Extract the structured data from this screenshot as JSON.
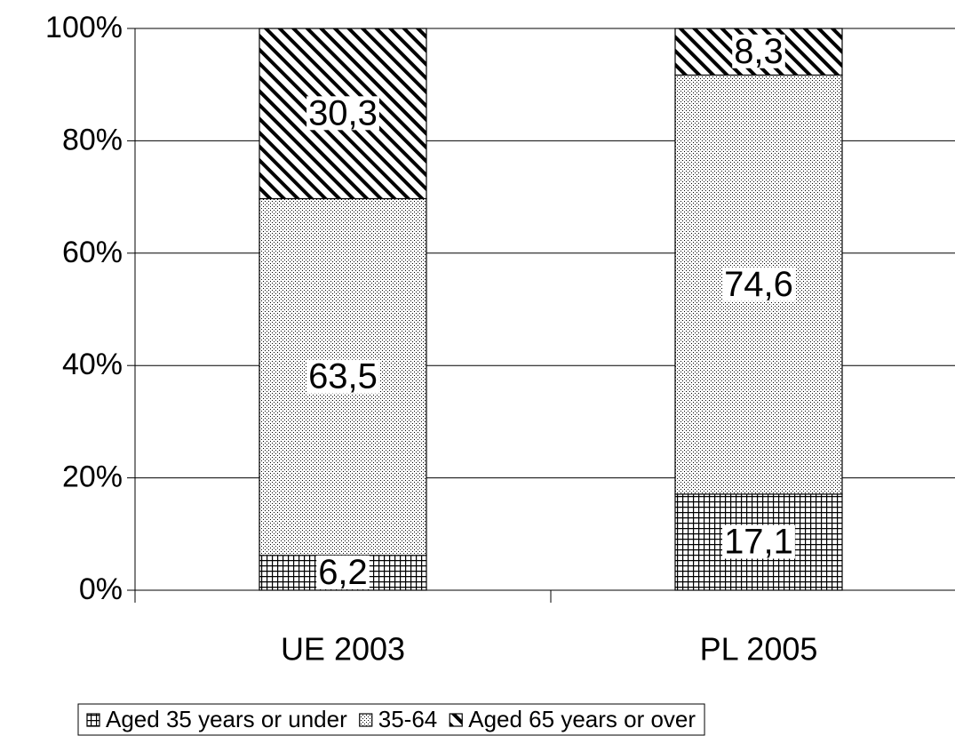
{
  "chart_data": {
    "type": "stacked-bar",
    "categories": [
      "UE 2003",
      "PL 2005"
    ],
    "series": [
      {
        "name": "Aged 35 years or under",
        "color": "#000000",
        "pattern": "grid",
        "values": [
          6.2,
          17.1
        ],
        "value_labels": [
          "6,2",
          "17,1"
        ]
      },
      {
        "name": "35-64",
        "color": "#000000",
        "pattern": "dots",
        "values": [
          63.5,
          74.6
        ],
        "value_labels": [
          "63,5",
          "74,6"
        ]
      },
      {
        "name": "Aged 65 years or over",
        "color": "#000000",
        "pattern": "diagonal",
        "values": [
          30.3,
          8.3
        ],
        "value_labels": [
          "30,3",
          "8,3"
        ]
      }
    ],
    "ylim": [
      0,
      100
    ],
    "yticks": [
      {
        "value": 0,
        "label": "0%"
      },
      {
        "value": 20,
        "label": "20%"
      },
      {
        "value": 40,
        "label": "40%"
      },
      {
        "value": 60,
        "label": "60%"
      },
      {
        "value": 80,
        "label": "80%"
      },
      {
        "value": 100,
        "label": "100%"
      }
    ],
    "grid": true,
    "legend": "bottom"
  }
}
